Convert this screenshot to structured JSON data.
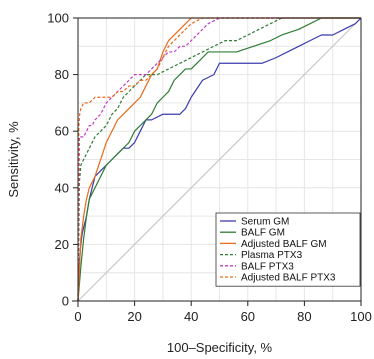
{
  "chart_data": {
    "type": "line",
    "title": "",
    "xlabel": "100–Specificity, %",
    "ylabel": "Sensitivity, %",
    "xlim": [
      0,
      100
    ],
    "ylim": [
      0,
      100
    ],
    "xticks": [
      0,
      20,
      40,
      60,
      80,
      100
    ],
    "yticks": [
      0,
      20,
      40,
      60,
      80,
      100
    ],
    "grid": true,
    "legend_position": "bottom-right",
    "reference_line": {
      "x": [
        0,
        100
      ],
      "y": [
        0,
        100
      ],
      "color": "#c8c8c8"
    },
    "series": [
      {
        "name": "Serum GM",
        "color": "#3b3bb0",
        "dash": "solid",
        "x": [
          0,
          0.5,
          1,
          1.5,
          2,
          3,
          4,
          5,
          6,
          8,
          10,
          12,
          14,
          16,
          18,
          20,
          22,
          24,
          26,
          30,
          34,
          36,
          38,
          40,
          44,
          48,
          50,
          55,
          60,
          65,
          70,
          74,
          78,
          82,
          86,
          90,
          94,
          98,
          100
        ],
        "y": [
          0,
          14,
          20,
          24,
          26,
          30,
          36,
          40,
          44,
          46,
          48,
          50,
          52,
          54,
          54,
          56,
          60,
          64,
          64,
          66,
          66,
          66,
          68,
          72,
          78,
          80,
          84,
          84,
          84,
          84,
          86,
          88,
          90,
          92,
          94,
          94,
          96,
          98,
          100
        ]
      },
      {
        "name": "BALF GM",
        "color": "#2e7d32",
        "dash": "solid",
        "x": [
          0,
          1,
          2,
          3,
          4,
          6,
          8,
          10,
          12,
          14,
          16,
          18,
          20,
          24,
          26,
          28,
          30,
          32,
          34,
          36,
          38,
          40,
          42,
          44,
          46,
          50,
          56,
          62,
          68,
          72,
          78,
          82,
          86,
          90,
          100
        ],
        "y": [
          0,
          12,
          22,
          30,
          36,
          40,
          44,
          48,
          50,
          52,
          54,
          56,
          60,
          64,
          66,
          70,
          72,
          74,
          78,
          80,
          82,
          82,
          84,
          86,
          88,
          88,
          88,
          90,
          92,
          94,
          96,
          98,
          100,
          100,
          100
        ]
      },
      {
        "name": "Adjusted BALF GM",
        "color": "#e86a1c",
        "dash": "solid",
        "x": [
          0,
          1,
          2,
          3,
          4,
          6,
          8,
          10,
          12,
          14,
          16,
          18,
          20,
          22,
          24,
          26,
          28,
          30,
          32,
          34,
          36,
          38,
          40,
          42,
          46,
          50,
          60,
          70,
          80,
          90,
          100
        ],
        "y": [
          0,
          22,
          30,
          36,
          40,
          44,
          50,
          56,
          60,
          64,
          66,
          68,
          70,
          72,
          76,
          80,
          82,
          88,
          92,
          94,
          96,
          98,
          100,
          100,
          100,
          100,
          100,
          100,
          100,
          100,
          100
        ]
      },
      {
        "name": "Plasma PTX3",
        "color": "#2e7d32",
        "dash": "3,2",
        "x": [
          0,
          0.5,
          1,
          2,
          3,
          4,
          6,
          8,
          10,
          12,
          14,
          16,
          18,
          20,
          22,
          24,
          28,
          32,
          36,
          40,
          44,
          48,
          52,
          56,
          60,
          64,
          68,
          72,
          76,
          80,
          100
        ],
        "y": [
          0,
          42,
          48,
          50,
          52,
          54,
          58,
          60,
          62,
          66,
          68,
          72,
          74,
          76,
          78,
          80,
          80,
          82,
          84,
          86,
          88,
          90,
          92,
          92,
          94,
          96,
          98,
          100,
          100,
          100,
          100
        ]
      },
      {
        "name": "BALF PTX3",
        "color": "#c23bc2",
        "dash": "3,2",
        "x": [
          0,
          0.5,
          1,
          2,
          3,
          4,
          5,
          6,
          8,
          10,
          12,
          14,
          16,
          18,
          20,
          22,
          24,
          26,
          28,
          30,
          32,
          34,
          36,
          38,
          40,
          42,
          44,
          46,
          50,
          60,
          70,
          80,
          90,
          100
        ],
        "y": [
          0,
          58,
          58,
          58,
          60,
          62,
          62,
          64,
          66,
          70,
          72,
          74,
          76,
          78,
          80,
          80,
          80,
          82,
          84,
          86,
          88,
          88,
          90,
          90,
          92,
          94,
          96,
          98,
          100,
          100,
          100,
          100,
          100,
          100
        ]
      },
      {
        "name": "Adjusted BALF PTX3",
        "color": "#e86a1c",
        "dash": "3,2",
        "x": [
          0,
          0.3,
          0.6,
          1,
          2,
          4,
          6,
          8,
          10,
          12,
          14,
          16,
          18,
          20,
          22,
          24,
          26,
          28,
          30,
          32,
          34,
          36,
          38,
          40,
          44,
          50,
          60,
          70,
          80,
          90,
          100
        ],
        "y": [
          0,
          62,
          66,
          68,
          70,
          70,
          72,
          72,
          72,
          72,
          74,
          74,
          76,
          76,
          78,
          78,
          80,
          82,
          86,
          90,
          92,
          94,
          96,
          98,
          100,
          100,
          100,
          100,
          100,
          100,
          100
        ]
      }
    ]
  }
}
